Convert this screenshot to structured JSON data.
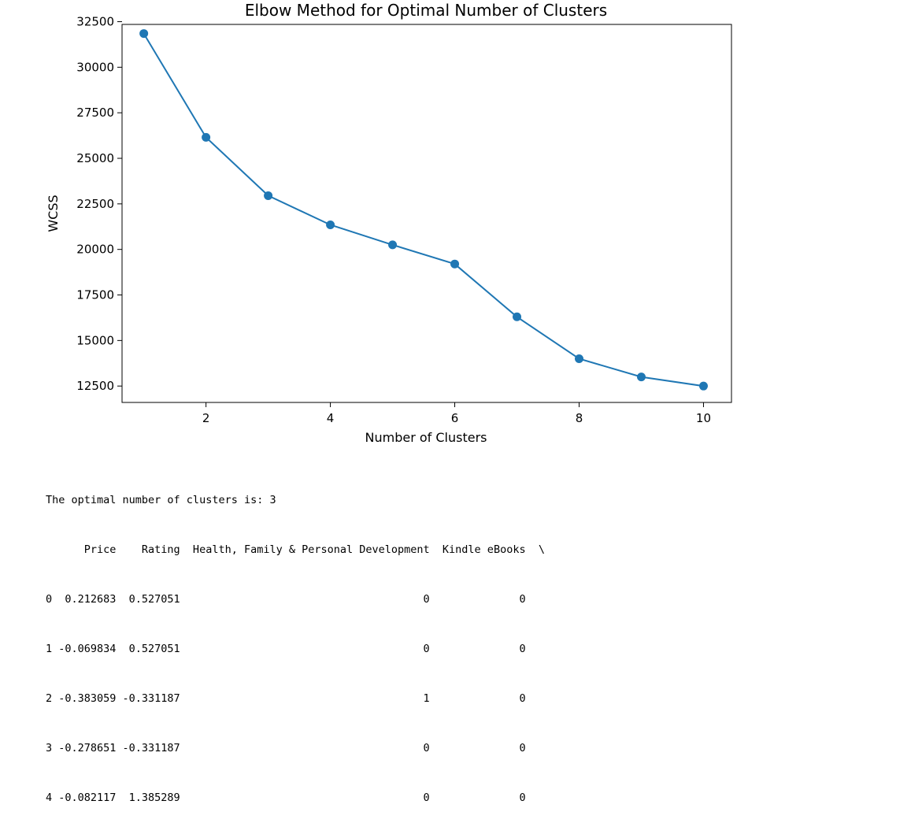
{
  "chart_data": {
    "type": "line",
    "title": "Elbow Method for Optimal Number of Clusters",
    "xlabel": "Number of Clusters",
    "ylabel": "WCSS",
    "x": [
      1,
      2,
      3,
      4,
      5,
      6,
      7,
      8,
      9,
      10
    ],
    "series": [
      {
        "values": [
          31850,
          26150,
          22950,
          21350,
          20250,
          19200,
          16300,
          14000,
          13000,
          12500
        ]
      }
    ],
    "xticks": [
      2,
      4,
      6,
      8,
      10
    ],
    "yticks": [
      12500,
      15000,
      17500,
      20000,
      22500,
      25000,
      27500,
      30000,
      32500
    ],
    "xlim": [
      0.65,
      10.45
    ],
    "ylim": [
      11600,
      32350
    ],
    "color": "#1f77b4",
    "marker": "circle",
    "grid": false,
    "legend": "none"
  },
  "output": {
    "message": "The optimal number of clusters is: 3",
    "table_header": "      Price    Rating  Health, Family & Personal Development  Kindle eBooks  \\",
    "table_rows": [
      "0  0.212683  0.527051                                      0              0",
      "1 -0.069834  0.527051                                      0              0",
      "2 -0.383059 -0.331187                                      1              0",
      "3 -0.278651 -0.331187                                      0              0",
      "4 -0.082117  1.385289                                      0              0"
    ]
  }
}
